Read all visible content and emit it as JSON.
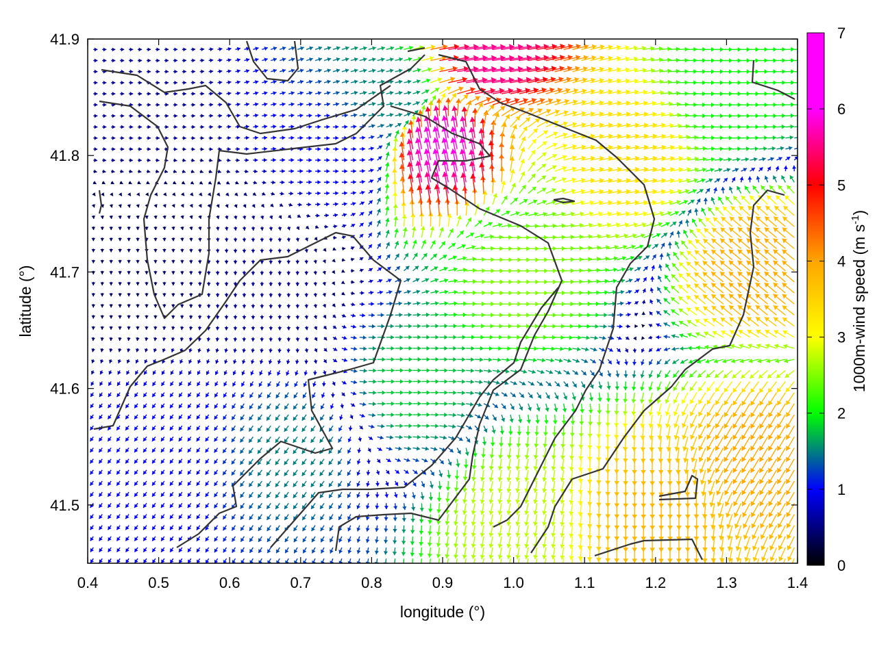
{
  "chart_data": {
    "type": "vector-field",
    "title": "",
    "xlabel": "longitude (°)",
    "ylabel": "latitude (°)",
    "xlim": [
      0.4,
      1.4
    ],
    "ylim": [
      41.45,
      41.9
    ],
    "xticks": [
      0.4,
      0.5,
      0.6,
      0.7,
      0.8,
      0.9,
      1.0,
      1.1,
      1.2,
      1.3,
      1.4
    ],
    "xtick_labels": [
      "0.4",
      "0.5",
      "0.6",
      "0.7",
      "0.8",
      "0.9",
      "1.0",
      "1.1",
      "1.2",
      "1.3",
      "1.4"
    ],
    "yticks": [
      41.5,
      41.6,
      41.7,
      41.8,
      41.9
    ],
    "ytick_labels": [
      "41.5",
      "41.6",
      "41.7",
      "41.8",
      "41.9"
    ],
    "grid": false,
    "colorbar": {
      "label_parts": [
        "1000m-wind speed (m s",
        "-1",
        ")"
      ],
      "range": [
        0,
        7
      ],
      "ticks": [
        0,
        1,
        2,
        3,
        4,
        5,
        6,
        7
      ],
      "tick_labels": [
        "0",
        "1",
        "2",
        "3",
        "4",
        "5",
        "6",
        "7"
      ],
      "colormap": [
        "#000000",
        "#0000ff",
        "#00ff00",
        "#ffff00",
        "#ffa500",
        "#ff0000",
        "#ff00ff"
      ]
    },
    "wind_field": {
      "description_points": [
        {
          "lon": 0.45,
          "lat": 41.85,
          "u": 0.6,
          "v": 0.0,
          "speed": 0.6
        },
        {
          "lon": 0.45,
          "lat": 41.7,
          "u": 0.0,
          "v": -0.4,
          "speed": 0.4
        },
        {
          "lon": 0.5,
          "lat": 41.55,
          "u": -0.6,
          "v": -0.8,
          "speed": 1.0
        },
        {
          "lon": 0.65,
          "lat": 41.7,
          "u": 0.0,
          "v": -0.6,
          "speed": 0.6
        },
        {
          "lon": 0.7,
          "lat": 41.55,
          "u": -0.9,
          "v": -1.2,
          "speed": 1.5
        },
        {
          "lon": 0.75,
          "lat": 41.8,
          "u": 1.0,
          "v": 0.0,
          "speed": 1.0
        },
        {
          "lon": 0.82,
          "lat": 41.85,
          "u": 1.5,
          "v": 0.3,
          "speed": 1.6
        },
        {
          "lon": 0.85,
          "lat": 41.6,
          "u": 1.8,
          "v": 0.0,
          "speed": 1.8
        },
        {
          "lon": 0.9,
          "lat": 41.8,
          "u": -1.2,
          "v": 5.8,
          "speed": 6.0
        },
        {
          "lon": 0.95,
          "lat": 41.88,
          "u": 5.5,
          "v": 0.8,
          "speed": 5.6
        },
        {
          "lon": 1.0,
          "lat": 41.7,
          "u": 2.5,
          "v": 0.0,
          "speed": 2.5
        },
        {
          "lon": 1.0,
          "lat": 41.5,
          "u": -0.5,
          "v": -2.7,
          "speed": 2.8
        },
        {
          "lon": 1.15,
          "lat": 41.8,
          "u": 3.3,
          "v": 0.6,
          "speed": 3.4
        },
        {
          "lon": 1.2,
          "lat": 41.5,
          "u": 0.0,
          "v": -3.8,
          "speed": 3.8
        },
        {
          "lon": 1.3,
          "lat": 41.85,
          "u": 2.0,
          "v": 0.0,
          "speed": 2.0
        },
        {
          "lon": 1.35,
          "lat": 41.7,
          "u": -3.0,
          "v": 2.5,
          "speed": 3.9
        },
        {
          "lon": 1.35,
          "lat": 41.55,
          "u": -2.0,
          "v": -3.4,
          "speed": 3.9
        }
      ]
    },
    "contour_lines": "dark gray terrain contours overlaid"
  }
}
